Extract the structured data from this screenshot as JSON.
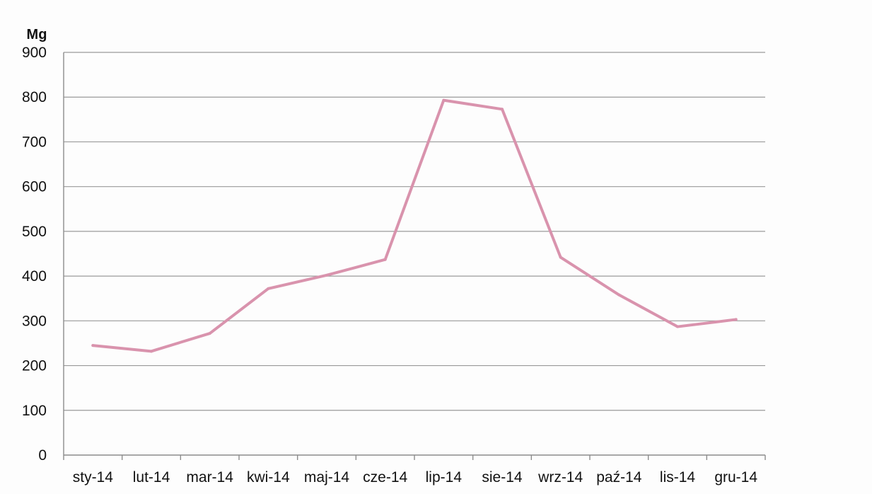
{
  "chart_data": {
    "type": "line",
    "ylabel": "Mg",
    "xlabel": "",
    "ylim": [
      0,
      900
    ],
    "yticks": [
      "0",
      "100",
      "200",
      "300",
      "400",
      "500",
      "600",
      "700",
      "800",
      "900"
    ],
    "categories": [
      "sty-14",
      "lut-14",
      "mar-14",
      "kwi-14",
      "maj-14",
      "cze-14",
      "lip-14",
      "sie-14",
      "wrz-14",
      "paź-14",
      "lis-14",
      "gru-14"
    ],
    "series": [
      {
        "values": [
          245,
          232,
          272,
          372,
          402,
          437,
          793,
          773,
          442,
          358,
          287,
          303
        ],
        "color": "#d993ad"
      }
    ],
    "grid": true,
    "legend": "none"
  }
}
